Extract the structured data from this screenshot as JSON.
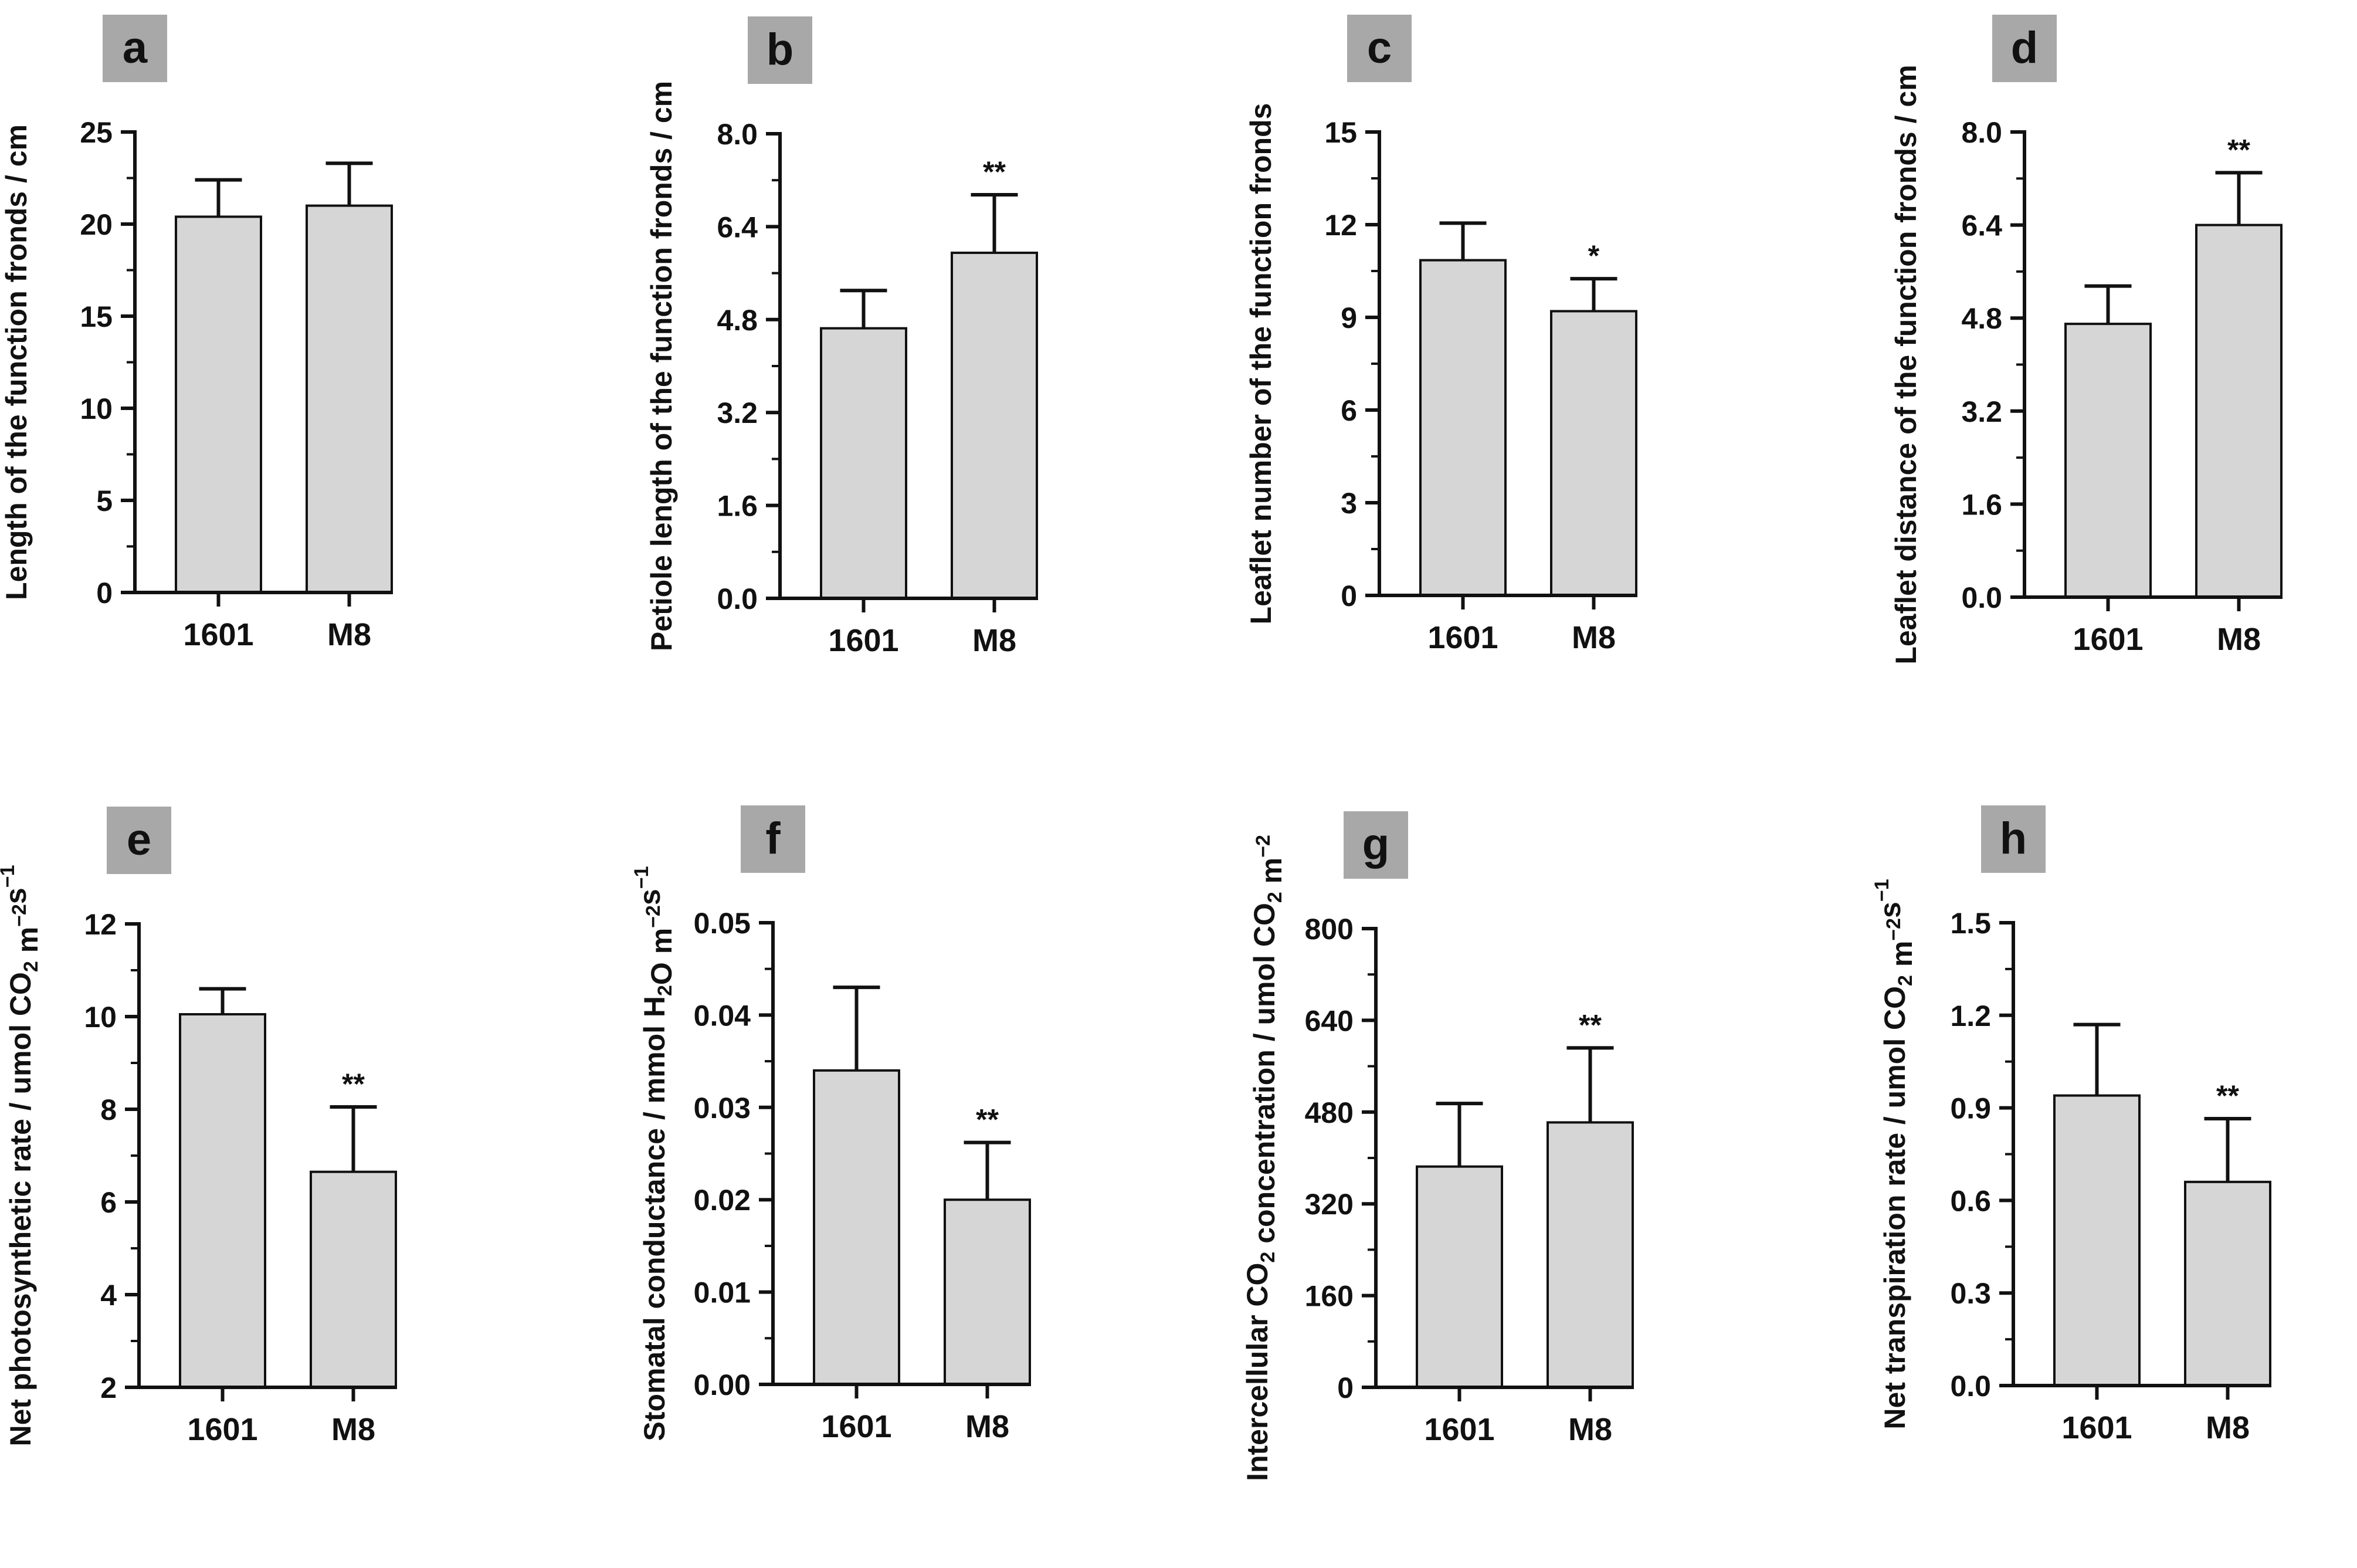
{
  "colors": {
    "bar_fill": "#d6d6d6",
    "stroke": "#111111",
    "label_box": "#a8a8a8",
    "text": "#111111"
  },
  "chart_data": [
    {
      "panel": "a",
      "type": "bar",
      "categories": [
        "1601",
        "M8"
      ],
      "values": [
        20.4,
        21.0
      ],
      "errors": [
        2.0,
        2.3
      ],
      "significance": [
        "",
        ""
      ],
      "ylim": [
        0,
        25
      ],
      "yticks": [
        "0",
        "5",
        "10",
        "15",
        "20",
        "25"
      ],
      "ylabel_parts": [
        {
          "t": "Length of  the function fronds / cm"
        }
      ]
    },
    {
      "panel": "b",
      "type": "bar",
      "categories": [
        "1601",
        "M8"
      ],
      "values": [
        4.65,
        5.95
      ],
      "errors": [
        0.65,
        1.0
      ],
      "significance": [
        "",
        "**"
      ],
      "ylim": [
        0,
        8
      ],
      "yticks": [
        "0.0",
        "1.6",
        "3.2",
        "4.8",
        "6.4",
        "8.0"
      ],
      "ylabel_parts": [
        {
          "t": "Petiole length of  the function fronds / cm"
        }
      ]
    },
    {
      "panel": "c",
      "type": "bar",
      "categories": [
        "1601",
        "M8"
      ],
      "values": [
        10.85,
        9.2
      ],
      "errors": [
        1.2,
        1.05
      ],
      "significance": [
        "",
        "*"
      ],
      "ylim": [
        0,
        15
      ],
      "yticks": [
        "0",
        "3",
        "6",
        "9",
        "12",
        "15"
      ],
      "ylabel_parts": [
        {
          "t": "Leaflet number of the function fronds"
        }
      ]
    },
    {
      "panel": "d",
      "type": "bar",
      "categories": [
        "1601",
        "M8"
      ],
      "values": [
        4.7,
        6.4
      ],
      "errors": [
        0.65,
        0.9
      ],
      "significance": [
        "",
        "**"
      ],
      "ylim": [
        0,
        8
      ],
      "yticks": [
        "0.0",
        "1.6",
        "3.2",
        "4.8",
        "6.4",
        "8.0"
      ],
      "ylabel_parts": [
        {
          "t": "Leaflet distance of the function fronds / cm"
        }
      ]
    },
    {
      "panel": "e",
      "type": "bar",
      "categories": [
        "1601",
        "M8"
      ],
      "values": [
        10.05,
        6.65
      ],
      "errors": [
        0.55,
        1.4
      ],
      "significance": [
        "",
        "**"
      ],
      "ylim": [
        2,
        12
      ],
      "yticks": [
        "2",
        "4",
        "6",
        "8",
        "10",
        "12"
      ],
      "ylabel_parts": [
        {
          "t": "Net photosynthetic rate / umol CO"
        },
        {
          "t": "2",
          "s": "sub"
        },
        {
          "t": " m"
        },
        {
          "t": "−2",
          "s": "sup"
        },
        {
          "t": "s"
        },
        {
          "t": "−1",
          "s": "sup"
        }
      ]
    },
    {
      "panel": "f",
      "type": "bar",
      "categories": [
        "1601",
        "M8"
      ],
      "values": [
        0.034,
        0.02
      ],
      "errors": [
        0.009,
        0.0062
      ],
      "significance": [
        "",
        "**"
      ],
      "ylim": [
        0,
        0.05
      ],
      "yticks": [
        "0.00",
        "0.01",
        "0.02",
        "0.03",
        "0.04",
        "0.05"
      ],
      "ylabel_parts": [
        {
          "t": "Stomatal conductance / mmol H"
        },
        {
          "t": "2",
          "s": "sub"
        },
        {
          "t": "O m"
        },
        {
          "t": "−2",
          "s": "sup"
        },
        {
          "t": "s"
        },
        {
          "t": "−1",
          "s": "sup"
        }
      ]
    },
    {
      "panel": "g",
      "type": "bar",
      "categories": [
        "1601",
        "M8"
      ],
      "values": [
        385,
        462
      ],
      "errors": [
        110,
        130
      ],
      "significance": [
        "",
        "**"
      ],
      "ylim": [
        0,
        800
      ],
      "yticks": [
        "0",
        "160",
        "320",
        "480",
        "640",
        "800"
      ],
      "ylabel_parts": [
        {
          "t": "Intercellular CO"
        },
        {
          "t": "2",
          "s": "sub"
        },
        {
          "t": " concentration / umol CO"
        },
        {
          "t": "2",
          "s": "sub"
        },
        {
          "t": " m"
        },
        {
          "t": "−2",
          "s": "sup"
        }
      ]
    },
    {
      "panel": "h",
      "type": "bar",
      "categories": [
        "1601",
        "M8"
      ],
      "values": [
        0.94,
        0.66
      ],
      "errors": [
        0.23,
        0.205
      ],
      "significance": [
        "",
        "**"
      ],
      "ylim": [
        0,
        1.5
      ],
      "yticks": [
        "0.0",
        "0.3",
        "0.6",
        "0.9",
        "1.2",
        "1.5"
      ],
      "ylabel_parts": [
        {
          "t": "Net transpiration rate / umol CO"
        },
        {
          "t": "2",
          "s": "sub"
        },
        {
          "t": " m"
        },
        {
          "t": "−2",
          "s": "sup"
        },
        {
          "t": "s"
        },
        {
          "t": "−1",
          "s": "sup"
        }
      ]
    }
  ]
}
